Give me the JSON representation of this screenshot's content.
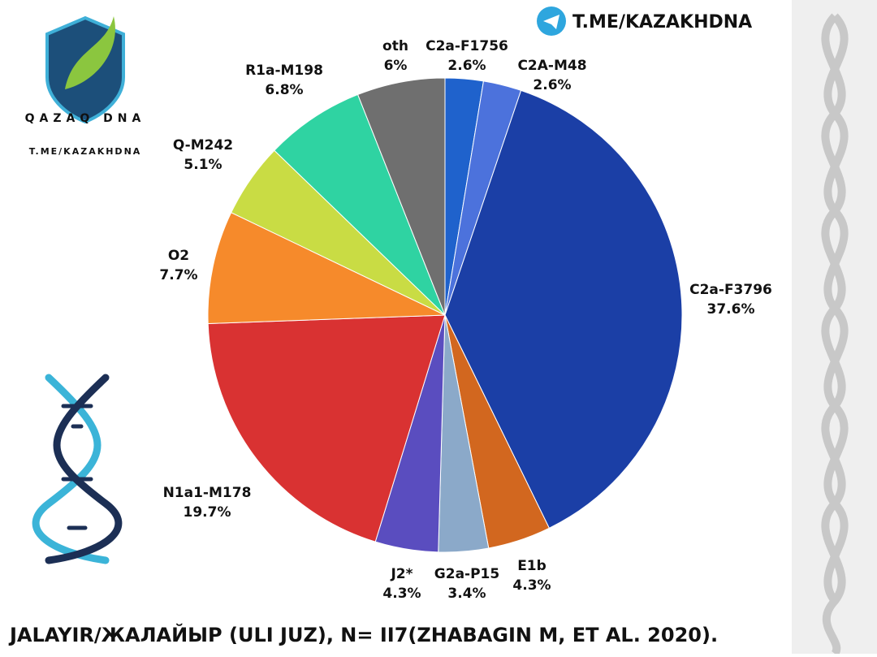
{
  "chart_data": {
    "type": "pie",
    "channel": "T.ME/KAZAKHDNA",
    "logo_text": "QAZAQ DNA",
    "logo_subtext": "T.ME/KAZAKHDNA",
    "caption": "JALAYIR/ЖАЛАЙЫР (ULI JUZ), N= II7(ZHABAGIN M, ET AL. 2020).",
    "categories": [
      "C2a-F1756",
      "C2A-M48",
      "C2a-F3796",
      "E1b",
      "G2a-P15",
      "J2*",
      "N1a1-M178",
      "O2",
      "Q-M242",
      "R1a-M198",
      "oth"
    ],
    "values": [
      2.6,
      2.6,
      37.6,
      4.3,
      3.4,
      4.3,
      19.7,
      7.7,
      5.1,
      6.8,
      6
    ],
    "value_labels": [
      "2.6%",
      "2.6%",
      "37.6%",
      "4.3%",
      "3.4%",
      "4.3%",
      "19.7%",
      "7.7%",
      "5.1%",
      "6.8%",
      "6%"
    ],
    "colors": [
      "#1f62cc",
      "#4c72dc",
      "#1b3fa6",
      "#d2671f",
      "#8ba9c9",
      "#5a4dbf",
      "#d93232",
      "#f68a2b",
      "#c9dc44",
      "#2fd3a2",
      "#6f6f6f"
    ]
  }
}
